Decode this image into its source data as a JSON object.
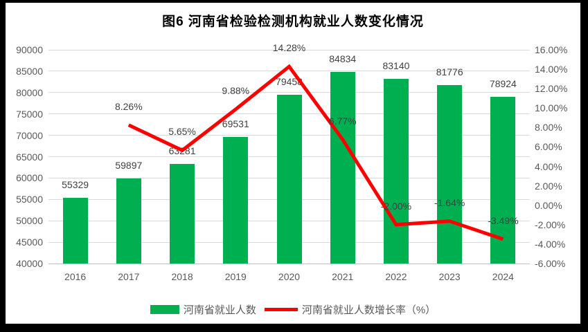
{
  "chart_data": {
    "type": "bar+line combo",
    "title": "图6  河南省检验检测机构就业人数变化情况",
    "categories": [
      "2016",
      "2017",
      "2018",
      "2019",
      "2020",
      "2021",
      "2022",
      "2023",
      "2024"
    ],
    "series": [
      {
        "name": "河南省就业人数",
        "type": "bar",
        "axis": "left",
        "color": "#00B050",
        "values": [
          55329,
          59897,
          63281,
          69531,
          79458,
          84834,
          83140,
          81776,
          78924
        ]
      },
      {
        "name": "河南省就业人数增长率（%）",
        "type": "line",
        "axis": "right",
        "color": "#FF0000",
        "values": [
          null,
          8.26,
          5.65,
          9.88,
          14.28,
          6.77,
          -2.0,
          -1.64,
          -3.49
        ]
      }
    ],
    "left_axis": {
      "min": 40000,
      "max": 90000,
      "step": 5000
    },
    "right_axis": {
      "min": -6,
      "max": 16,
      "step": 2,
      "format": "percent2"
    },
    "legend_position": "bottom",
    "grid": true
  },
  "colors": {
    "bar": "#00B050",
    "line": "#FF0000",
    "gridline": "#D9D9D9",
    "axis_line": "#BFBFBF",
    "axis_text": "#595959",
    "data_label_text": "#404040",
    "background": "#FFFFFF",
    "frame": "#000000"
  }
}
